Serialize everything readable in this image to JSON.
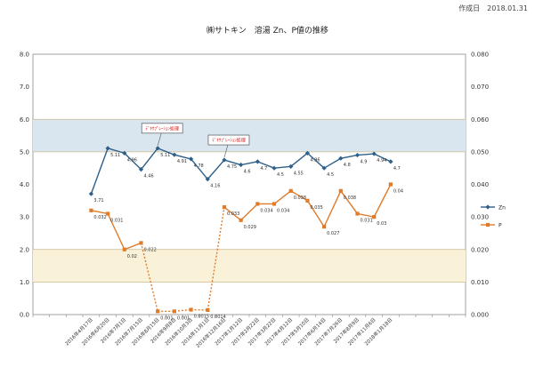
{
  "header": {
    "date_stamp": "作成日　2018.01.31"
  },
  "chart_data": {
    "type": "line",
    "title": "㈱サトキン　溶湯 Zn、P値の推移",
    "y_left": {
      "min": 0,
      "max": 8,
      "ticks": [
        "0.0",
        "1.0",
        "2.0",
        "3.0",
        "4.0",
        "5.0",
        "6.0",
        "7.0",
        "8.0"
      ]
    },
    "y_right": {
      "min": 0,
      "max": 0.08,
      "ticks": [
        "0.000",
        "0.010",
        "0.020",
        "0.030",
        "0.040",
        "0.050",
        "0.060",
        "0.070",
        "0.080"
      ]
    },
    "bands": [
      {
        "name": "zn-target-band",
        "axis": "left",
        "from": 5.0,
        "to": 6.0,
        "color": "#d9e6ef"
      },
      {
        "name": "p-target-band",
        "axis": "left",
        "from": 1.0,
        "to": 2.0,
        "color": "#faf1d9"
      }
    ],
    "categories": [
      "",
      "",
      "",
      "2016年4月17日",
      "2016年6月20日",
      "2016年7月1日",
      "2016年7月15日",
      "2016年8月15日",
      "2016年9月8日",
      "2016年10月3日",
      "2016年11月1日",
      "2016年12月16日",
      "2017年1月12日",
      "2017年2月22日",
      "2017年3月22日",
      "2017年4月12日",
      "2017年5月10日",
      "2017年6月14日",
      "2017年7月26日",
      "2017年8月9日",
      "2017年11月6日",
      "2018年1月18日",
      "",
      "",
      "",
      ""
    ],
    "series": [
      {
        "name": "Zn",
        "axis": "left",
        "color": "#2e5f8a",
        "marker": "diamond",
        "dashed_segments": [],
        "values": [
          null,
          null,
          null,
          3.71,
          5.11,
          4.96,
          4.46,
          5.11,
          4.91,
          4.78,
          4.16,
          4.75,
          4.6,
          4.7,
          4.5,
          4.55,
          4.96,
          4.5,
          4.8,
          4.9,
          4.94,
          4.7,
          null,
          null,
          null,
          null
        ],
        "labels": [
          "",
          "",
          "",
          "3.71",
          "5.11",
          "4.96",
          "4.46",
          "5.11",
          "4.91",
          "4.78",
          "4.16",
          "4.75",
          "4.6",
          "4.7",
          "4.5",
          "4.55",
          "4.96",
          "4.5",
          "4.8",
          "4.9",
          "4.94",
          "4.7",
          "",
          "",
          "",
          ""
        ]
      },
      {
        "name": "P",
        "axis": "right",
        "color": "#e07b2a",
        "marker": "square",
        "dashed_segments": [
          6,
          7,
          8,
          9,
          10
        ],
        "values": [
          null,
          null,
          null,
          0.032,
          0.031,
          0.02,
          0.022,
          0.001,
          0.001,
          0.0015,
          0.0014,
          0.033,
          0.029,
          0.034,
          0.034,
          0.038,
          0.035,
          0.027,
          0.038,
          0.031,
          0.03,
          0.04,
          null,
          null,
          null,
          null
        ],
        "labels": [
          "",
          "",
          "",
          "0.032",
          "0.031",
          "0.02",
          "0.022",
          "0.001",
          "0.001",
          "0.0015",
          "0.0014",
          "0.033",
          "0.029",
          "0.034",
          "0.034",
          "0.038",
          "0.035",
          "0.027",
          "0.038",
          "0.031",
          "0.03",
          "0.04",
          "",
          "",
          "",
          ""
        ]
      }
    ],
    "annotations": [
      {
        "text": "ﾃﾞｷｻﾌﾟﾚｰｼｮﾝ処理",
        "index": 7,
        "series": "Zn"
      },
      {
        "text": "ﾃﾞｷｻﾌﾟﾚｰｼｮﾝ処理",
        "index": 11,
        "series": "Zn"
      }
    ],
    "legend": {
      "position": "right",
      "entries": [
        "Zn",
        "P"
      ]
    }
  }
}
